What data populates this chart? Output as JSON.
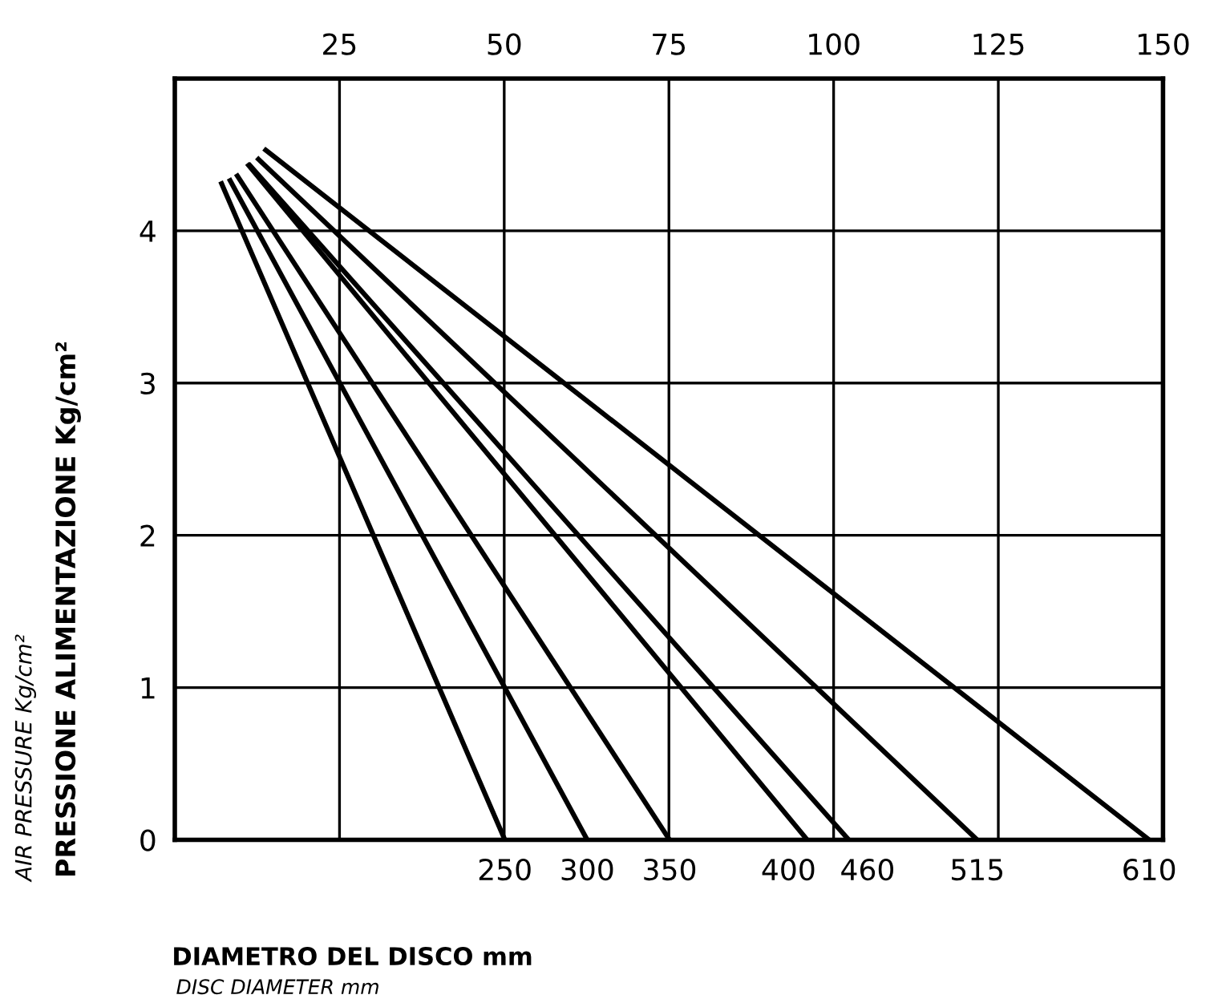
{
  "chart_data": {
    "type": "line",
    "xlabel": "DIAMETRO DEL DISCO mm",
    "ylabel": "PRESSIONE ALIMENTAZIONE Kg/cm²",
    "annotations": [
      "DISC DIAMETER mm",
      "AIR PRESSURE Kg/cm²",
      {
        "text": "250",
        "x": 50.1,
        "y": 0
      },
      {
        "text": "300",
        "x": 62.6,
        "y": 0
      },
      {
        "text": "350",
        "x": 75.1,
        "y": 0
      },
      {
        "text": "400",
        "x": 96.0,
        "y": 0
      },
      {
        "text": "460",
        "x": 102.3,
        "y": 0
      },
      {
        "text": "515",
        "x": 121.8,
        "y": 0
      },
      {
        "text": "610",
        "x": 147.9,
        "y": 0
      }
    ],
    "xlim": [
      0,
      150
    ],
    "xticks": [
      25,
      50,
      75,
      100,
      125,
      150
    ],
    "ylim": [
      0,
      5
    ],
    "yticks": [
      0,
      1,
      2,
      3,
      4
    ],
    "grid": true,
    "series": [
      {
        "color": "#000000",
        "x": [
          7.1,
          50.1
        ],
        "values": [
          4.31,
          0
        ]
      },
      {
        "color": "#000000",
        "x": [
          8.4,
          62.6
        ],
        "values": [
          4.33,
          0
        ]
      },
      {
        "color": "#000000",
        "x": [
          9.5,
          75.1
        ],
        "values": [
          4.36,
          0
        ]
      },
      {
        "color": "#000000",
        "x": [
          11.2,
          96.0
        ],
        "values": [
          4.43,
          0
        ]
      },
      {
        "color": "#000000",
        "x": [
          11.4,
          102.3
        ],
        "values": [
          4.43,
          0
        ]
      },
      {
        "color": "#000000",
        "x": [
          12.7,
          121.8
        ],
        "values": [
          4.47,
          0
        ]
      },
      {
        "color": "#000000",
        "x": [
          13.8,
          147.9
        ],
        "values": [
          4.53,
          0
        ]
      }
    ]
  }
}
